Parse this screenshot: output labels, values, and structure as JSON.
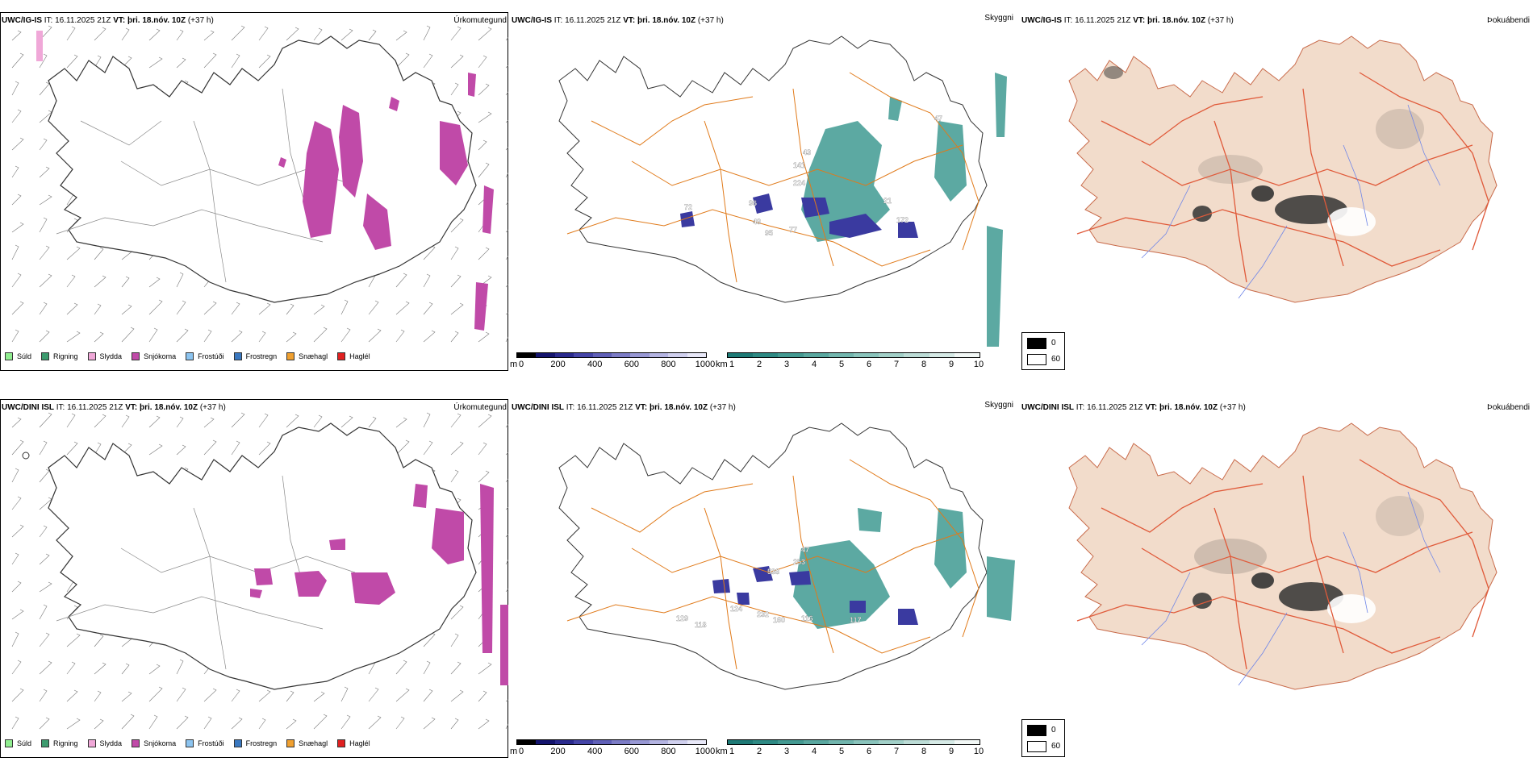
{
  "rows": [
    {
      "header": {
        "model": "UWC/IG-IS",
        "it": " IT: 16.11.2025 21Z ",
        "vt_label": "VT: ",
        "vt": "þri. 18.nóv. 10Z",
        "lead": " (+37 h)"
      },
      "titles": {
        "precip": "Úrkomutegund",
        "visibility": "Skyggni",
        "fog": "Þokuábendi"
      },
      "visibility_labels": [
        "72",
        "96",
        "48",
        "95",
        "77",
        "224",
        "141",
        "43",
        "21",
        "172",
        "47"
      ]
    },
    {
      "header": {
        "model": "UWC/DINI ISL",
        "it": " IT: 16.11.2025 21Z ",
        "vt_label": "VT: ",
        "vt": "þri. 18.nóv. 10Z",
        "lead": " (+37 h)"
      },
      "titles": {
        "precip": "Úrkomutegund",
        "visibility": "Skyggni",
        "fog": "Þokuábendi"
      },
      "visibility_labels": [
        "129",
        "118",
        "124",
        "232",
        "160",
        "116",
        "117",
        "538",
        "253",
        "47"
      ]
    }
  ],
  "precip_legend": [
    {
      "label": "Súld",
      "color": "#90ee90"
    },
    {
      "label": "Rigning",
      "color": "#3c9b6e"
    },
    {
      "label": "Slydda",
      "color": "#f0a8d8"
    },
    {
      "label": "Snjókoma",
      "color": "#c04aa8"
    },
    {
      "label": "Frostúði",
      "color": "#8cc4f0"
    },
    {
      "label": "Frostregn",
      "color": "#3a78c0"
    },
    {
      "label": "Snæhagl",
      "color": "#f0a030"
    },
    {
      "label": "Haglél",
      "color": "#e02020"
    }
  ],
  "elevation_bar": {
    "unit": "m",
    "ticks": [
      "0",
      "200",
      "400",
      "600",
      "800",
      "1000"
    ],
    "colors": [
      "#000000",
      "#14146e",
      "#2a2a8e",
      "#4545a8",
      "#6060b8",
      "#7c7cc6",
      "#9898d4",
      "#b4b4e2",
      "#d0d0ee",
      "#e8e8f8"
    ]
  },
  "visibility_bar": {
    "unit": "km",
    "ticks": [
      "1",
      "2",
      "3",
      "4",
      "5",
      "6",
      "7",
      "8",
      "9",
      "10"
    ],
    "colors": [
      "#1e7a76",
      "#2e8a84",
      "#449a92",
      "#5aa8a0",
      "#72b6ae",
      "#8ac4bc",
      "#a2d0c8",
      "#bcdcd6",
      "#d6eae6",
      "#f2f8f6"
    ]
  },
  "fog_legend": [
    {
      "label": "0",
      "color": "#000000"
    },
    {
      "label": "60",
      "color": "#ffffff"
    }
  ],
  "colors": {
    "snow": "#c04aa8",
    "vis": "#3f9a92",
    "vis_blue": "#3a3aa0",
    "road": "#e07a1a",
    "land_fog": "#f2dccb",
    "road_fog": "#e05a3a",
    "river": "#6f86e8"
  }
}
